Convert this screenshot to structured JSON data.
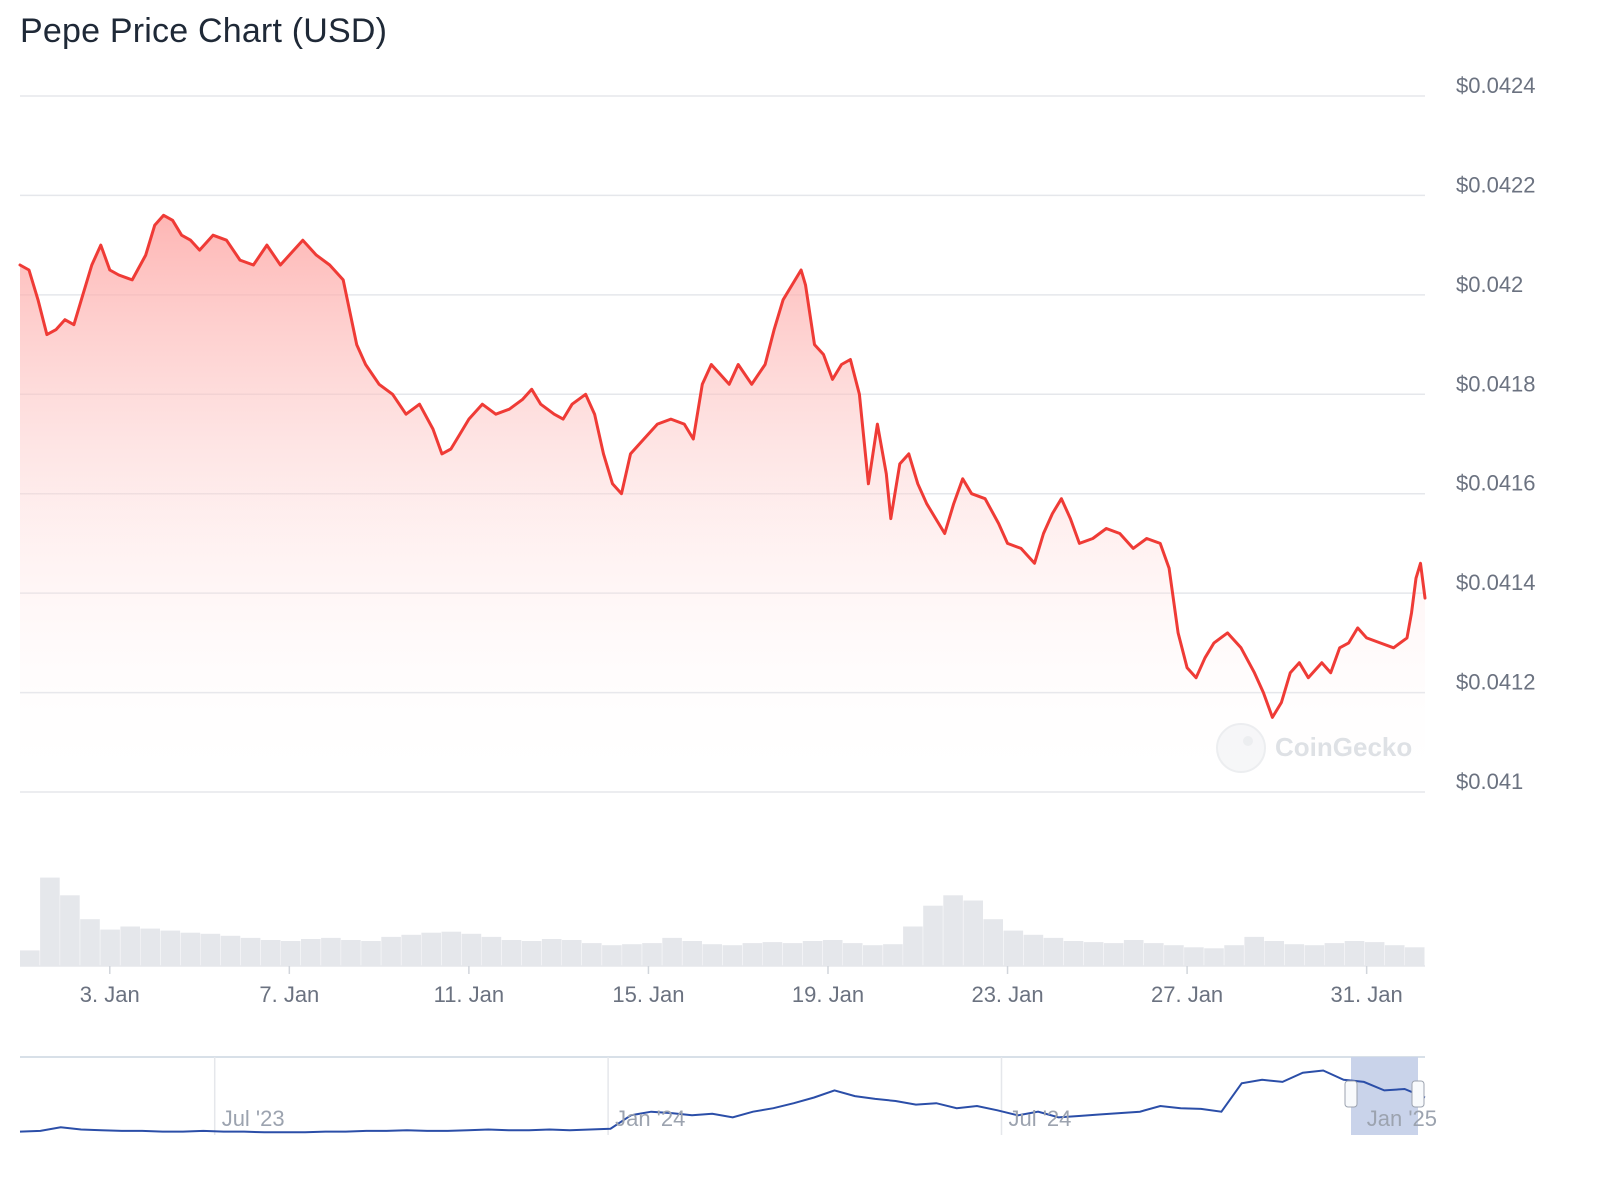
{
  "title": "Pepe Price Chart (USD)",
  "watermark": "CoinGecko",
  "colors": {
    "price_line": "#ef3b36",
    "area_fill_top": "#fda4a2",
    "gridline": "#e5e7eb",
    "volume": "#e5e7eb",
    "navigator_line": "#2b4ea8",
    "navigator_selection": "#c9d3ea"
  },
  "chart_data": {
    "type": "area",
    "ylim": [
      0.041,
      0.0424
    ],
    "yticks": [
      {
        "value": 0.0424,
        "label": "$0.0424"
      },
      {
        "value": 0.0422,
        "label": "$0.0422"
      },
      {
        "value": 0.042,
        "label": "$0.042"
      },
      {
        "value": 0.0418,
        "label": "$0.0418"
      },
      {
        "value": 0.0416,
        "label": "$0.0416"
      },
      {
        "value": 0.0414,
        "label": "$0.0414"
      },
      {
        "value": 0.0412,
        "label": "$0.0412"
      },
      {
        "value": 0.041,
        "label": "$0.041"
      }
    ],
    "xlim": [
      1,
      32.3
    ],
    "xticks": [
      {
        "day": 3,
        "label": "3. Jan"
      },
      {
        "day": 7,
        "label": "7. Jan"
      },
      {
        "day": 11,
        "label": "11. Jan"
      },
      {
        "day": 15,
        "label": "15. Jan"
      },
      {
        "day": 19,
        "label": "19. Jan"
      },
      {
        "day": 23,
        "label": "23. Jan"
      },
      {
        "day": 27,
        "label": "27. Jan"
      },
      {
        "day": 31,
        "label": "31. Jan"
      }
    ],
    "series": [
      {
        "points": [
          [
            1.0,
            0.04206
          ],
          [
            1.2,
            0.04205
          ],
          [
            1.4,
            0.04199
          ],
          [
            1.6,
            0.04192
          ],
          [
            1.8,
            0.04193
          ],
          [
            2.0,
            0.04195
          ],
          [
            2.2,
            0.04194
          ],
          [
            2.4,
            0.042
          ],
          [
            2.6,
            0.04206
          ],
          [
            2.8,
            0.0421
          ],
          [
            3.0,
            0.04205
          ],
          [
            3.2,
            0.04204
          ],
          [
            3.5,
            0.04203
          ],
          [
            3.8,
            0.04208
          ],
          [
            4.0,
            0.04214
          ],
          [
            4.2,
            0.04216
          ],
          [
            4.4,
            0.04215
          ],
          [
            4.6,
            0.04212
          ],
          [
            4.8,
            0.04211
          ],
          [
            5.0,
            0.04209
          ],
          [
            5.3,
            0.04212
          ],
          [
            5.6,
            0.04211
          ],
          [
            5.9,
            0.04207
          ],
          [
            6.2,
            0.04206
          ],
          [
            6.5,
            0.0421
          ],
          [
            6.8,
            0.04206
          ],
          [
            7.0,
            0.04208
          ],
          [
            7.3,
            0.04211
          ],
          [
            7.6,
            0.04208
          ],
          [
            7.9,
            0.04206
          ],
          [
            8.2,
            0.04203
          ],
          [
            8.5,
            0.0419
          ],
          [
            8.7,
            0.04186
          ],
          [
            9.0,
            0.04182
          ],
          [
            9.3,
            0.0418
          ],
          [
            9.6,
            0.04176
          ],
          [
            9.9,
            0.04178
          ],
          [
            10.2,
            0.04173
          ],
          [
            10.4,
            0.04168
          ],
          [
            10.6,
            0.04169
          ],
          [
            10.8,
            0.04172
          ],
          [
            11.0,
            0.04175
          ],
          [
            11.3,
            0.04178
          ],
          [
            11.6,
            0.04176
          ],
          [
            11.9,
            0.04177
          ],
          [
            12.2,
            0.04179
          ],
          [
            12.4,
            0.04181
          ],
          [
            12.6,
            0.04178
          ],
          [
            12.9,
            0.04176
          ],
          [
            13.1,
            0.04175
          ],
          [
            13.3,
            0.04178
          ],
          [
            13.6,
            0.0418
          ],
          [
            13.8,
            0.04176
          ],
          [
            14.0,
            0.04168
          ],
          [
            14.2,
            0.04162
          ],
          [
            14.4,
            0.0416
          ],
          [
            14.6,
            0.04168
          ],
          [
            14.9,
            0.04171
          ],
          [
            15.2,
            0.04174
          ],
          [
            15.5,
            0.04175
          ],
          [
            15.8,
            0.04174
          ],
          [
            16.0,
            0.04171
          ],
          [
            16.2,
            0.04182
          ],
          [
            16.4,
            0.04186
          ],
          [
            16.6,
            0.04184
          ],
          [
            16.8,
            0.04182
          ],
          [
            17.0,
            0.04186
          ],
          [
            17.3,
            0.04182
          ],
          [
            17.6,
            0.04186
          ],
          [
            17.8,
            0.04193
          ],
          [
            18.0,
            0.04199
          ],
          [
            18.2,
            0.04202
          ],
          [
            18.4,
            0.04205
          ],
          [
            18.5,
            0.04202
          ],
          [
            18.7,
            0.0419
          ],
          [
            18.9,
            0.04188
          ],
          [
            19.1,
            0.04183
          ],
          [
            19.3,
            0.04186
          ],
          [
            19.5,
            0.04187
          ],
          [
            19.7,
            0.0418
          ],
          [
            19.9,
            0.04162
          ],
          [
            20.1,
            0.04174
          ],
          [
            20.3,
            0.04164
          ],
          [
            20.4,
            0.04155
          ],
          [
            20.6,
            0.04166
          ],
          [
            20.8,
            0.04168
          ],
          [
            21.0,
            0.04162
          ],
          [
            21.2,
            0.04158
          ],
          [
            21.4,
            0.04155
          ],
          [
            21.6,
            0.04152
          ],
          [
            21.8,
            0.04158
          ],
          [
            22.0,
            0.04163
          ],
          [
            22.2,
            0.0416
          ],
          [
            22.5,
            0.04159
          ],
          [
            22.8,
            0.04154
          ],
          [
            23.0,
            0.0415
          ],
          [
            23.3,
            0.04149
          ],
          [
            23.6,
            0.04146
          ],
          [
            23.8,
            0.04152
          ],
          [
            24.0,
            0.04156
          ],
          [
            24.2,
            0.04159
          ],
          [
            24.4,
            0.04155
          ],
          [
            24.6,
            0.0415
          ],
          [
            24.9,
            0.04151
          ],
          [
            25.2,
            0.04153
          ],
          [
            25.5,
            0.04152
          ],
          [
            25.8,
            0.04149
          ],
          [
            26.1,
            0.04151
          ],
          [
            26.4,
            0.0415
          ],
          [
            26.6,
            0.04145
          ],
          [
            26.8,
            0.04132
          ],
          [
            27.0,
            0.04125
          ],
          [
            27.2,
            0.04123
          ],
          [
            27.4,
            0.04127
          ],
          [
            27.6,
            0.0413
          ],
          [
            27.9,
            0.04132
          ],
          [
            28.2,
            0.04129
          ],
          [
            28.5,
            0.04124
          ],
          [
            28.7,
            0.0412
          ],
          [
            28.9,
            0.04115
          ],
          [
            29.1,
            0.04118
          ],
          [
            29.3,
            0.04124
          ],
          [
            29.5,
            0.04126
          ],
          [
            29.7,
            0.04123
          ],
          [
            30.0,
            0.04126
          ],
          [
            30.2,
            0.04124
          ],
          [
            30.4,
            0.04129
          ],
          [
            30.6,
            0.0413
          ],
          [
            30.8,
            0.04133
          ],
          [
            31.0,
            0.04131
          ],
          [
            31.3,
            0.0413
          ],
          [
            31.6,
            0.04129
          ],
          [
            31.9,
            0.04131
          ],
          [
            32.0,
            0.04136
          ],
          [
            32.1,
            0.04143
          ],
          [
            32.2,
            0.04146
          ],
          [
            32.3,
            0.04139
          ]
        ]
      }
    ],
    "volume_series": [
      0.15,
      0.85,
      0.68,
      0.45,
      0.35,
      0.38,
      0.36,
      0.34,
      0.32,
      0.31,
      0.29,
      0.27,
      0.25,
      0.24,
      0.26,
      0.27,
      0.25,
      0.24,
      0.28,
      0.3,
      0.32,
      0.33,
      0.31,
      0.28,
      0.25,
      0.24,
      0.26,
      0.25,
      0.22,
      0.2,
      0.21,
      0.22,
      0.27,
      0.24,
      0.21,
      0.2,
      0.22,
      0.23,
      0.22,
      0.24,
      0.25,
      0.22,
      0.2,
      0.21,
      0.38,
      0.58,
      0.68,
      0.63,
      0.45,
      0.34,
      0.3,
      0.27,
      0.24,
      0.23,
      0.22,
      0.25,
      0.22,
      0.2,
      0.18,
      0.17,
      0.2,
      0.28,
      0.24,
      0.21,
      0.2,
      0.22,
      0.24,
      0.23,
      0.2,
      0.18
    ],
    "navigator": {
      "labels": [
        {
          "pos": 0.14,
          "label": "Jul '23"
        },
        {
          "pos": 0.42,
          "label": "Jan '24"
        },
        {
          "pos": 0.7,
          "label": "Jul '24"
        },
        {
          "pos": 0.955,
          "label": "Jan '25"
        }
      ],
      "values": [
        0.02,
        0.03,
        0.08,
        0.05,
        0.04,
        0.03,
        0.03,
        0.02,
        0.02,
        0.03,
        0.02,
        0.02,
        0.01,
        0.01,
        0.01,
        0.02,
        0.02,
        0.03,
        0.03,
        0.04,
        0.03,
        0.03,
        0.04,
        0.05,
        0.04,
        0.04,
        0.05,
        0.04,
        0.05,
        0.06,
        0.25,
        0.3,
        0.28,
        0.25,
        0.27,
        0.22,
        0.3,
        0.35,
        0.42,
        0.5,
        0.6,
        0.52,
        0.48,
        0.45,
        0.4,
        0.42,
        0.35,
        0.38,
        0.32,
        0.25,
        0.3,
        0.22,
        0.24,
        0.26,
        0.28,
        0.3,
        0.38,
        0.35,
        0.34,
        0.3,
        0.7,
        0.75,
        0.72,
        0.85,
        0.88,
        0.75,
        0.72,
        0.6,
        0.62,
        0.5
      ]
    }
  }
}
